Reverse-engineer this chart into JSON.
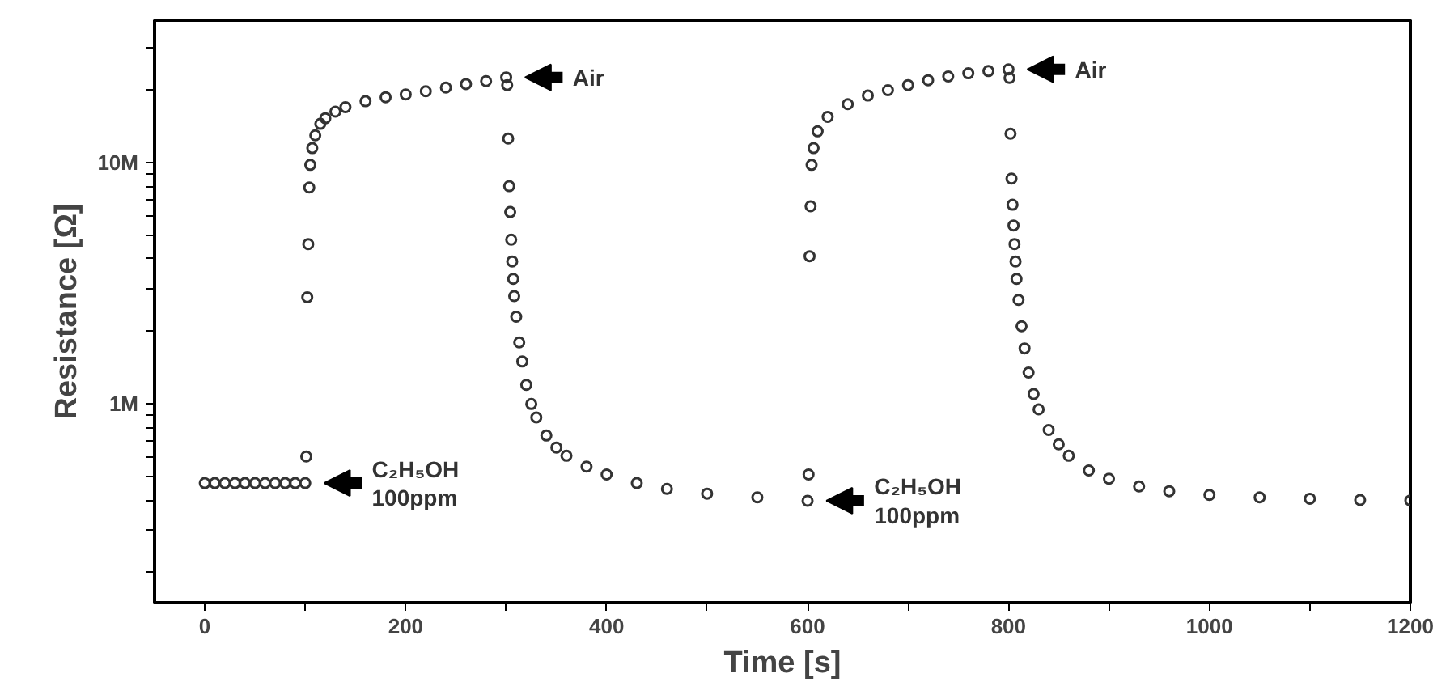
{
  "chart_data": {
    "type": "scatter",
    "xlabel": "Time [s]",
    "ylabel": "Resistance [Ω]",
    "x": [
      0,
      10,
      20,
      30,
      40,
      50,
      60,
      70,
      80,
      90,
      100,
      101,
      102,
      103,
      104,
      105,
      107,
      110,
      115,
      120,
      130,
      140,
      160,
      180,
      200,
      220,
      240,
      260,
      280,
      300,
      301,
      302,
      303,
      304,
      305,
      306,
      307,
      308,
      310,
      313,
      316,
      320,
      325,
      330,
      340,
      350,
      360,
      380,
      400,
      430,
      460,
      500,
      550,
      600,
      601,
      602,
      603,
      604,
      606,
      610,
      620,
      640,
      660,
      680,
      700,
      720,
      740,
      760,
      780,
      800,
      801,
      802,
      803,
      804,
      805,
      806,
      807,
      808,
      810,
      813,
      816,
      820,
      825,
      830,
      840,
      850,
      860,
      880,
      900,
      930,
      960,
      1000,
      1050,
      1100,
      1150,
      1200
    ],
    "series": [
      {
        "color": "#333333",
        "values": [
          470000,
          470000,
          470000,
          470000,
          470000,
          470000,
          470000,
          470000,
          470000,
          470000,
          470000,
          606000,
          2770000,
          4600000,
          7900000,
          9800000,
          11500000,
          13000000,
          14500000,
          15300000,
          16300000,
          17000000,
          18000000,
          18700000,
          19200000,
          19800000,
          20500000,
          21200000,
          21800000,
          22600000,
          21000000,
          12600000,
          8000000,
          6250000,
          4800000,
          3900000,
          3300000,
          2800000,
          2300000,
          1800000,
          1500000,
          1200000,
          1000000,
          880000,
          740000,
          660000,
          610000,
          550000,
          510000,
          470000,
          445000,
          425000,
          410000,
          397000,
          510000,
          4100000,
          6600000,
          9800000,
          11500000,
          13500000,
          15500000,
          17500000,
          19000000,
          20000000,
          21000000,
          22000000,
          22800000,
          23500000,
          24000000,
          24400000,
          22500000,
          13200000,
          8600000,
          6700000,
          5500000,
          4600000,
          3900000,
          3300000,
          2700000,
          2100000,
          1700000,
          1350000,
          1100000,
          950000,
          780000,
          680000,
          610000,
          530000,
          490000,
          455000,
          435000,
          420000,
          410000,
          405000,
          400000,
          398000
        ]
      }
    ],
    "marker": "circle",
    "log": "y",
    "grid": false,
    "xlim": [
      -50,
      1200
    ],
    "ylim": [
      150000,
      39000000
    ],
    "xticks": [
      0,
      {
        "value": 100,
        "label": null
      },
      200,
      {
        "value": 300,
        "label": null
      },
      400,
      {
        "value": 500,
        "label": null
      },
      600,
      {
        "value": 700,
        "label": null
      },
      800,
      {
        "value": 900,
        "label": null
      },
      1000,
      {
        "value": 1100,
        "label": null
      },
      1200
    ],
    "yticks": [
      {
        "value": 200000,
        "label": null
      },
      {
        "value": 300000,
        "label": null
      },
      {
        "value": 400000,
        "label": null
      },
      {
        "value": 500000,
        "label": null
      },
      {
        "value": 600000,
        "label": null
      },
      {
        "value": 700000,
        "label": null
      },
      {
        "value": 800000,
        "label": null
      },
      {
        "value": 900000,
        "label": null
      },
      {
        "value": 1000000,
        "label": "1M"
      },
      {
        "value": 2000000,
        "label": null
      },
      {
        "value": 3000000,
        "label": null
      },
      {
        "value": 4000000,
        "label": null
      },
      {
        "value": 5000000,
        "label": null
      },
      {
        "value": 6000000,
        "label": null
      },
      {
        "value": 7000000,
        "label": null
      },
      {
        "value": 8000000,
        "label": null
      },
      {
        "value": 9000000,
        "label": null
      },
      {
        "value": 10000000,
        "label": "10M"
      },
      {
        "value": 20000000,
        "label": null
      },
      {
        "value": 30000000,
        "label": null
      }
    ],
    "annotations": [
      {
        "text": "Air",
        "x": 300,
        "y": 22600000
      },
      {
        "text": "C₂H₅OH\n100ppm",
        "x": 100,
        "y": 470000
      },
      {
        "text": "Air",
        "x": 800,
        "y": 24400000
      },
      {
        "text": "C₂H₅OH\n100ppm",
        "x": 600,
        "y": 397000
      }
    ]
  }
}
